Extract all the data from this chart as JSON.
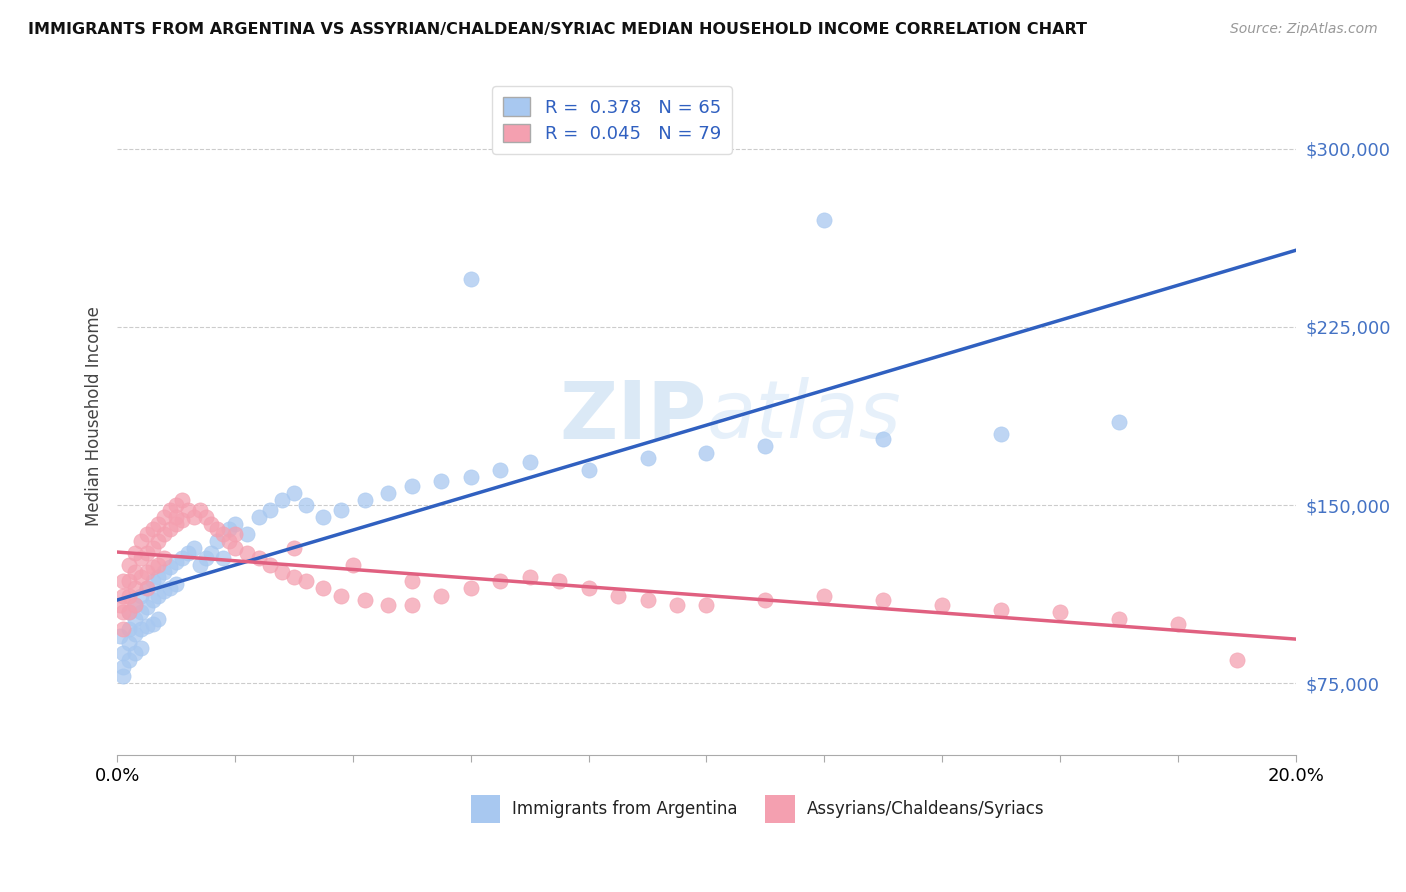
{
  "title": "IMMIGRANTS FROM ARGENTINA VS ASSYRIAN/CHALDEAN/SYRIAC MEDIAN HOUSEHOLD INCOME CORRELATION CHART",
  "source": "Source: ZipAtlas.com",
  "ylabel": "Median Household Income",
  "yticks": [
    75000,
    150000,
    225000,
    300000
  ],
  "ytick_labels": [
    "$75,000",
    "$150,000",
    "$225,000",
    "$300,000"
  ],
  "xlim": [
    0.0,
    0.2
  ],
  "ylim": [
    45000,
    330000
  ],
  "legend_r1": "R =  0.378",
  "legend_n1": "N = 65",
  "legend_r2": "R =  0.045",
  "legend_n2": "N = 79",
  "color_blue": "#a8c8f0",
  "color_pink": "#f4a0b0",
  "color_line_blue": "#3060c0",
  "color_line_pink": "#e06080",
  "color_ytick": "#4472c4",
  "bg_color": "#ffffff",
  "argentina_x": [
    0.0005,
    0.001,
    0.001,
    0.001,
    0.002,
    0.002,
    0.002,
    0.002,
    0.003,
    0.003,
    0.003,
    0.003,
    0.004,
    0.004,
    0.004,
    0.004,
    0.005,
    0.005,
    0.005,
    0.006,
    0.006,
    0.006,
    0.007,
    0.007,
    0.007,
    0.008,
    0.008,
    0.009,
    0.009,
    0.01,
    0.01,
    0.011,
    0.012,
    0.013,
    0.014,
    0.015,
    0.016,
    0.017,
    0.018,
    0.019,
    0.02,
    0.022,
    0.024,
    0.026,
    0.028,
    0.03,
    0.032,
    0.035,
    0.038,
    0.042,
    0.046,
    0.05,
    0.055,
    0.06,
    0.065,
    0.07,
    0.08,
    0.09,
    0.1,
    0.11,
    0.13,
    0.15,
    0.17,
    0.06,
    0.12
  ],
  "argentina_y": [
    95000,
    88000,
    82000,
    78000,
    105000,
    98000,
    92000,
    85000,
    108000,
    102000,
    96000,
    88000,
    112000,
    105000,
    98000,
    90000,
    115000,
    107000,
    99000,
    118000,
    110000,
    100000,
    120000,
    112000,
    102000,
    122000,
    114000,
    124000,
    115000,
    126000,
    117000,
    128000,
    130000,
    132000,
    125000,
    128000,
    130000,
    135000,
    128000,
    140000,
    142000,
    138000,
    145000,
    148000,
    152000,
    155000,
    150000,
    145000,
    148000,
    152000,
    155000,
    158000,
    160000,
    162000,
    165000,
    168000,
    165000,
    170000,
    172000,
    175000,
    178000,
    180000,
    185000,
    245000,
    270000
  ],
  "assyrian_x": [
    0.0005,
    0.001,
    0.001,
    0.001,
    0.001,
    0.002,
    0.002,
    0.002,
    0.002,
    0.003,
    0.003,
    0.003,
    0.003,
    0.004,
    0.004,
    0.004,
    0.005,
    0.005,
    0.005,
    0.005,
    0.006,
    0.006,
    0.006,
    0.007,
    0.007,
    0.007,
    0.008,
    0.008,
    0.008,
    0.009,
    0.009,
    0.01,
    0.01,
    0.011,
    0.011,
    0.012,
    0.013,
    0.014,
    0.015,
    0.016,
    0.017,
    0.018,
    0.019,
    0.02,
    0.022,
    0.024,
    0.026,
    0.028,
    0.03,
    0.032,
    0.035,
    0.038,
    0.042,
    0.046,
    0.05,
    0.055,
    0.06,
    0.065,
    0.07,
    0.075,
    0.08,
    0.085,
    0.09,
    0.095,
    0.1,
    0.11,
    0.12,
    0.13,
    0.14,
    0.15,
    0.16,
    0.17,
    0.18,
    0.19,
    0.01,
    0.02,
    0.03,
    0.04,
    0.05
  ],
  "assyrian_y": [
    108000,
    118000,
    112000,
    105000,
    98000,
    125000,
    118000,
    112000,
    105000,
    130000,
    122000,
    115000,
    108000,
    135000,
    128000,
    120000,
    138000,
    130000,
    122000,
    115000,
    140000,
    132000,
    124000,
    142000,
    135000,
    125000,
    145000,
    138000,
    128000,
    148000,
    140000,
    150000,
    142000,
    152000,
    144000,
    148000,
    145000,
    148000,
    145000,
    142000,
    140000,
    138000,
    135000,
    132000,
    130000,
    128000,
    125000,
    122000,
    120000,
    118000,
    115000,
    112000,
    110000,
    108000,
    108000,
    112000,
    115000,
    118000,
    120000,
    118000,
    115000,
    112000,
    110000,
    108000,
    108000,
    110000,
    112000,
    110000,
    108000,
    106000,
    105000,
    102000,
    100000,
    85000,
    145000,
    138000,
    132000,
    125000,
    118000
  ],
  "xtick_positions": [
    0.0,
    0.02,
    0.04,
    0.06,
    0.08,
    0.1,
    0.12,
    0.14,
    0.16,
    0.18,
    0.2
  ]
}
